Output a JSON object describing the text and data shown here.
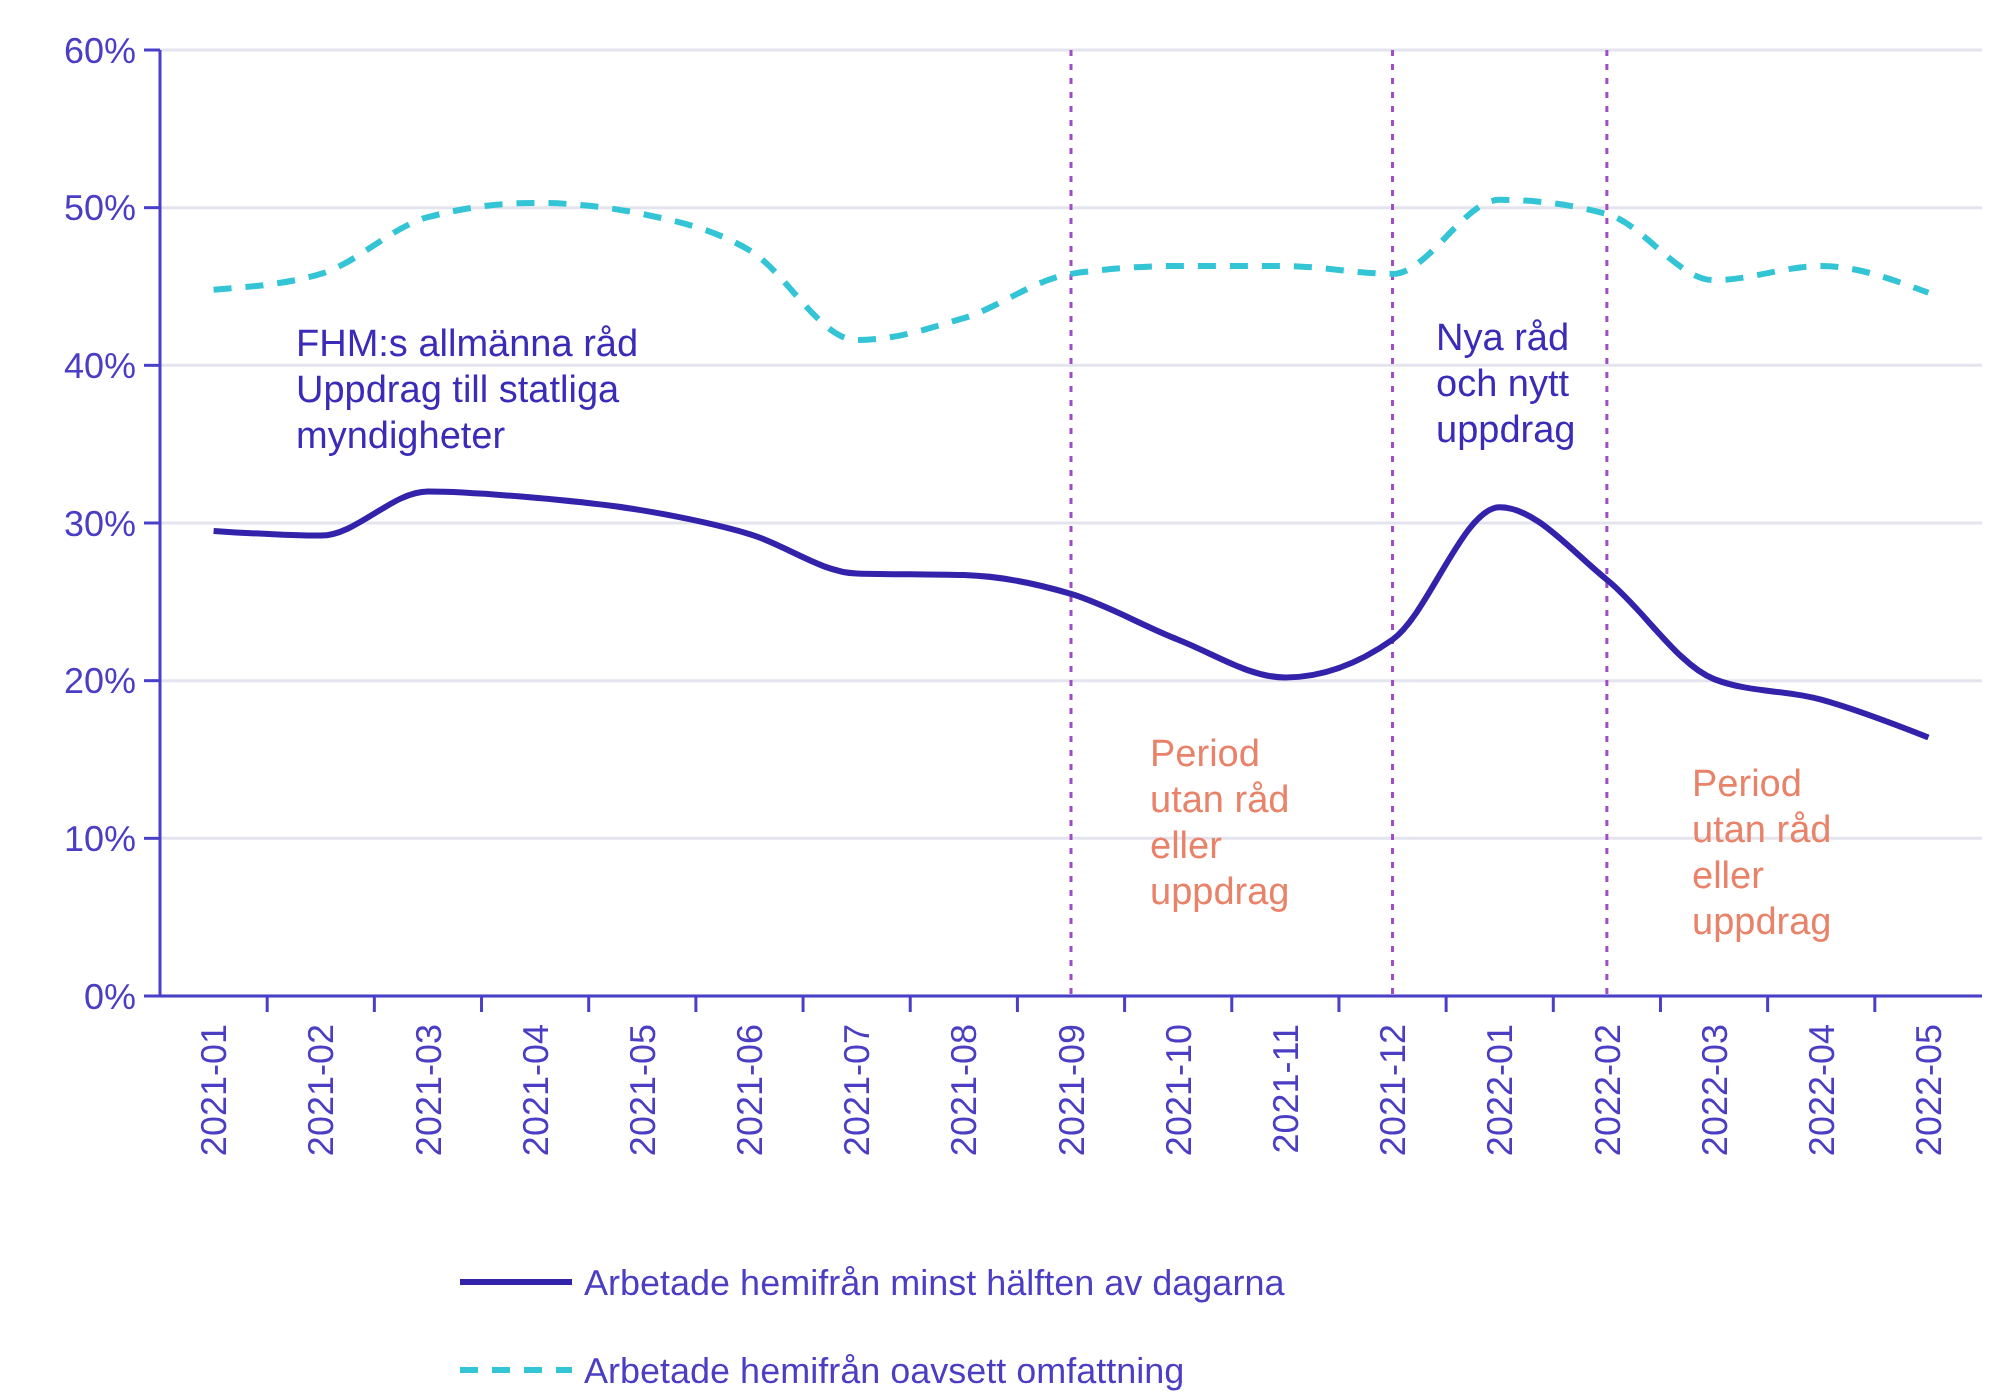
{
  "chart_data": {
    "type": "line",
    "categories": [
      "2021-01",
      "2021-02",
      "2021-03",
      "2021-04",
      "2021-05",
      "2021-06",
      "2021-07",
      "2021-08",
      "2021-09",
      "2021-10",
      "2021-11",
      "2021-12",
      "2022-01",
      "2022-02",
      "2022-03",
      "2022-04",
      "2022-05"
    ],
    "series": [
      {
        "name": "Arbetade hemifrån minst hälften av dagarna",
        "color": "#3322aa",
        "line_style": "solid",
        "values": [
          29.5,
          29.2,
          32.0,
          31.6,
          30.8,
          29.3,
          26.8,
          26.7,
          25.5,
          22.6,
          20.2,
          22.6,
          31.0,
          26.4,
          20.1,
          18.8,
          16.4
        ]
      },
      {
        "name": "Arbetade hemifrån oavsett omfattning",
        "color": "#33c4d6",
        "line_style": "dashed",
        "values": [
          44.8,
          45.8,
          49.4,
          50.3,
          49.6,
          47.3,
          41.6,
          43.0,
          45.8,
          46.3,
          46.3,
          45.8,
          50.5,
          49.6,
          45.4,
          46.3,
          44.6
        ]
      }
    ],
    "ylim": [
      0,
      60
    ],
    "yticks": [
      {
        "value": 0,
        "label": "0%"
      },
      {
        "value": 10,
        "label": "10%"
      },
      {
        "value": 20,
        "label": "20%"
      },
      {
        "value": 30,
        "label": "30%"
      },
      {
        "value": 40,
        "label": "40%"
      },
      {
        "value": 50,
        "label": "50%"
      },
      {
        "value": 60,
        "label": "60%"
      }
    ],
    "grid": "y",
    "legend": "bottom",
    "ref_lines": [
      {
        "axis": "x",
        "value": "2021-09",
        "color": "#a04cc4",
        "line_style": "dotted"
      },
      {
        "axis": "x",
        "value": "2021-12",
        "color": "#a04cc4",
        "line_style": "dotted"
      },
      {
        "axis": "x",
        "value": "2022-02",
        "color": "#a04cc4",
        "line_style": "dotted"
      }
    ],
    "annotations": [
      "FHM:s allmänna råd\nUppdrag till statliga\nmyndigheter",
      "Period\nutan råd\neller\nuppdrag",
      "Nya råd\noch nytt\nuppdrag",
      "Period\nutan råd\neller\nuppdrag"
    ]
  }
}
